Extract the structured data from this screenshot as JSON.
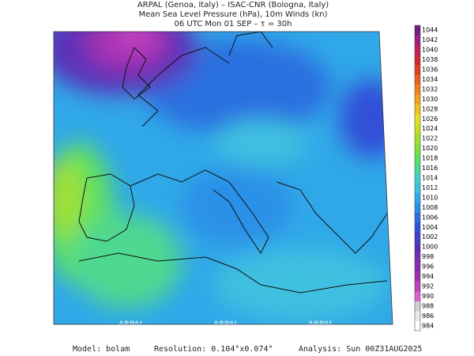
{
  "header": {
    "line1": "ARPAL (Genoa, Italy)  –  ISAC-CNR (Bologna, Italy)",
    "line2": "Mean Sea Level Pressure (hPa), 10m Winds (kn)",
    "line3": "06 UTC Mon 01 SEP  –  τ = 30h"
  },
  "watermark": "ARPAL",
  "colorbar": {
    "levels": [
      984,
      986,
      988,
      990,
      992,
      994,
      996,
      998,
      1000,
      1002,
      1004,
      1006,
      1008,
      1010,
      1012,
      1014,
      1016,
      1018,
      1020,
      1022,
      1024,
      1026,
      1028,
      1030,
      1032,
      1034,
      1036,
      1038,
      1040,
      1042,
      1044
    ],
    "colors": [
      "#ffffff",
      "#e8e8e8",
      "#d0d0d0",
      "#e060d0",
      "#c040c0",
      "#a030b0",
      "#8a2ab0",
      "#7030b0",
      "#5a30b8",
      "#4040c8",
      "#3050d8",
      "#2a70e0",
      "#2a90e8",
      "#30a8e8",
      "#40c0e0",
      "#40d0c8",
      "#50d890",
      "#60e060",
      "#80e040",
      "#a0e030",
      "#c8e020",
      "#e8e020",
      "#f0c020",
      "#f0a020",
      "#f08020",
      "#e86020",
      "#e04020",
      "#d02830",
      "#c02060",
      "#a02080",
      "#702080"
    ]
  },
  "footer": {
    "model": "Model: bolam",
    "resolution": "Resolution: 0.104°x0.074°",
    "analysis": "Analysis: Sun 00Z31AUG2025"
  }
}
